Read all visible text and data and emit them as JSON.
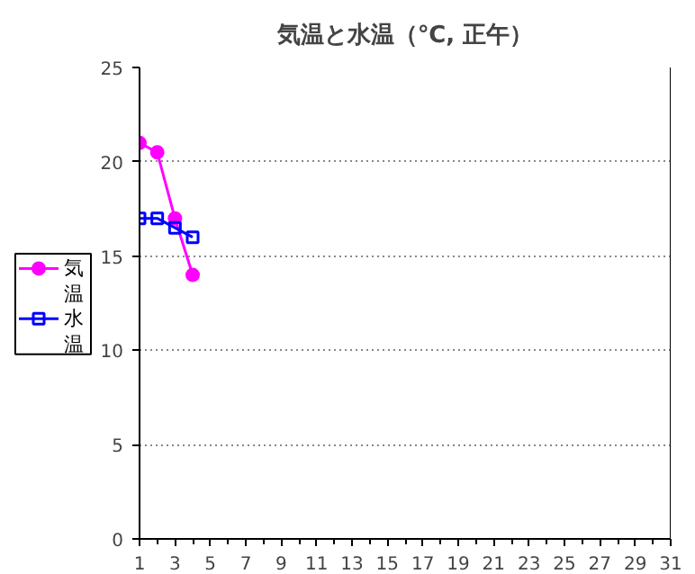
{
  "chart_data": {
    "type": "line",
    "title": "気温と水温（℃, 正午）",
    "x": [
      1,
      2,
      3,
      4
    ],
    "series": [
      {
        "name": "気温",
        "color": "#ff00ff",
        "values": [
          21,
          20.5,
          17,
          14
        ],
        "marker": "circle"
      },
      {
        "name": "水温",
        "color": "#0000ff",
        "values": [
          17,
          17,
          16.5,
          16
        ],
        "marker": "square"
      }
    ],
    "xlim": [
      1,
      31
    ],
    "xticks": [
      1,
      3,
      5,
      7,
      9,
      11,
      13,
      15,
      17,
      19,
      21,
      23,
      25,
      27,
      29,
      31
    ],
    "ylim": [
      0,
      25
    ],
    "yticks": [
      0,
      5,
      10,
      15,
      20,
      25
    ],
    "grid": "y",
    "legend": "left"
  }
}
